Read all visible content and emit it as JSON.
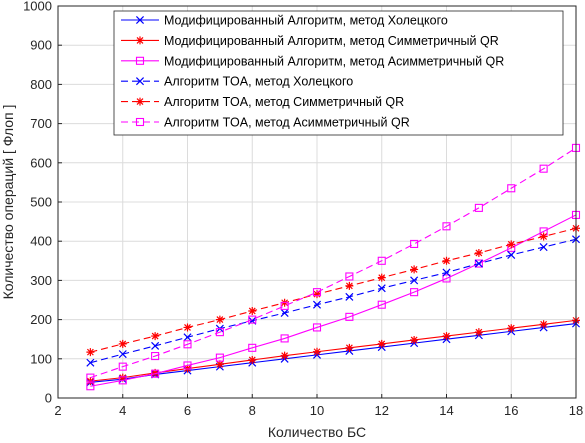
{
  "chart_data": {
    "type": "line",
    "xlabel": "Количество БС",
    "ylabel": "Количество операций [ Флоп ]",
    "xlim": [
      2,
      18
    ],
    "ylim": [
      0,
      1000
    ],
    "xticks": [
      2,
      4,
      6,
      8,
      10,
      12,
      14,
      16,
      18
    ],
    "yticks": [
      0,
      100,
      200,
      300,
      400,
      500,
      600,
      700,
      800,
      900,
      1000
    ],
    "grid": true,
    "legend_position": "top-right",
    "x": [
      3,
      4,
      5,
      6,
      7,
      8,
      9,
      10,
      11,
      12,
      13,
      14,
      15,
      16,
      17,
      18
    ],
    "series": [
      {
        "name": "Модифицированный Алгоритм, метод Холецкого",
        "color": "#0000ff",
        "dash": "solid",
        "marker": "x",
        "values": [
          40,
          48,
          60,
          70,
          80,
          90,
          100,
          110,
          120,
          130,
          140,
          150,
          160,
          170,
          180,
          190
        ]
      },
      {
        "name": "Модифицированный Алгоритм, метод Симметричный QR",
        "color": "#ff0000",
        "dash": "solid",
        "marker": "*",
        "values": [
          43,
          52,
          64,
          75,
          86,
          97,
          108,
          118,
          128,
          138,
          148,
          158,
          168,
          178,
          188,
          198
        ]
      },
      {
        "name": "Модифицированный Алгоритм, метод Асимметричный QR",
        "color": "#ff00ff",
        "dash": "solid",
        "marker": "square",
        "values": [
          30,
          45,
          62,
          83,
          103,
          128,
          152,
          180,
          207,
          238,
          270,
          305,
          343,
          383,
          425,
          467
        ]
      },
      {
        "name": "Алгоритм TOA, метод Холецкого",
        "color": "#0000ff",
        "dash": "dashed",
        "marker": "x",
        "values": [
          90,
          112,
          133,
          155,
          177,
          197,
          217,
          238,
          258,
          280,
          300,
          320,
          343,
          365,
          385,
          405
        ]
      },
      {
        "name": "Алгоритм TOA, метод Симметричный QR",
        "color": "#ff0000",
        "dash": "dashed",
        "marker": "*",
        "values": [
          117,
          138,
          158,
          180,
          200,
          222,
          243,
          265,
          286,
          307,
          328,
          350,
          370,
          392,
          412,
          433
        ]
      },
      {
        "name": "Алгоритм TOA, метод Асимметричный QR",
        "color": "#ff00ff",
        "dash": "dashed",
        "marker": "square",
        "values": [
          52,
          80,
          107,
          137,
          168,
          200,
          235,
          270,
          310,
          350,
          393,
          438,
          485,
          535,
          585,
          638
        ]
      }
    ]
  }
}
